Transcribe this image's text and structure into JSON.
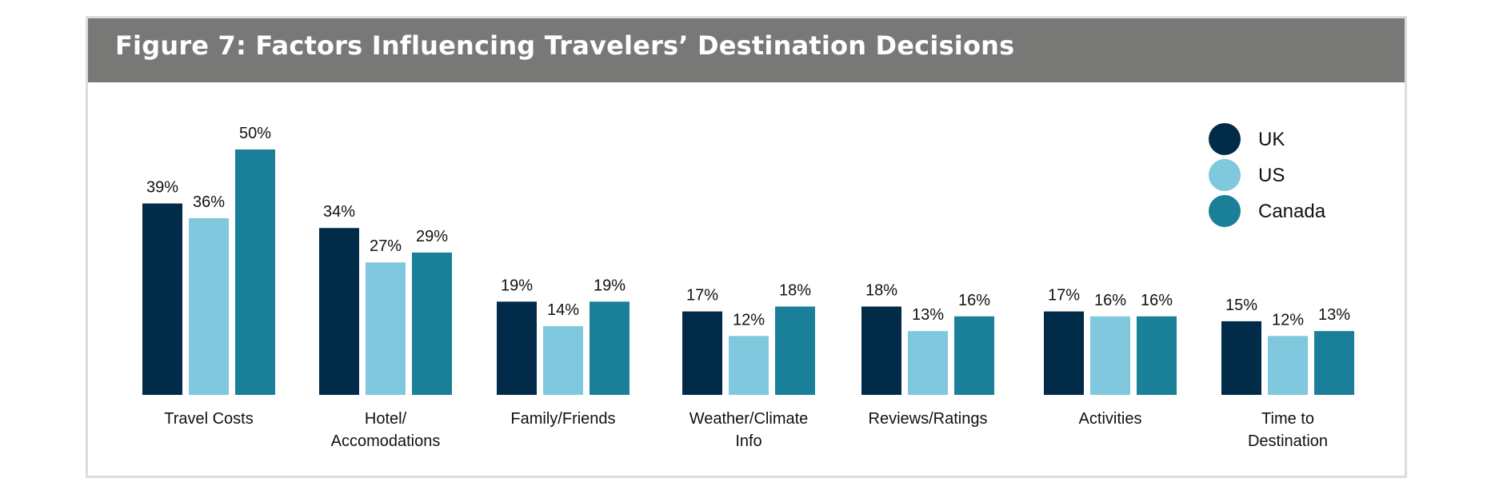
{
  "title": "Figure 7: Factors Influencing Travelers’ Destination Decisions",
  "chart_data": {
    "type": "bar",
    "categories": [
      [
        "Travel Costs"
      ],
      [
        "Hotel/",
        "Accomodations"
      ],
      [
        "Family/Friends"
      ],
      [
        "Weather/Climate",
        "Info"
      ],
      [
        "Reviews/Ratings"
      ],
      [
        "Activities"
      ],
      [
        "Time to",
        "Destination"
      ]
    ],
    "series": [
      {
        "name": "UK",
        "color": "#022b4a",
        "values": [
          39,
          34,
          19,
          17,
          18,
          17,
          15
        ]
      },
      {
        "name": "US",
        "color": "#7fc8de",
        "values": [
          36,
          27,
          14,
          12,
          13,
          16,
          12
        ]
      },
      {
        "name": "Canada",
        "color": "#1a8099",
        "values": [
          50,
          29,
          19,
          18,
          16,
          16,
          13
        ]
      }
    ],
    "value_suffix": "%",
    "ylim": [
      0,
      50
    ],
    "legend_position": "top-right",
    "grid": false
  }
}
